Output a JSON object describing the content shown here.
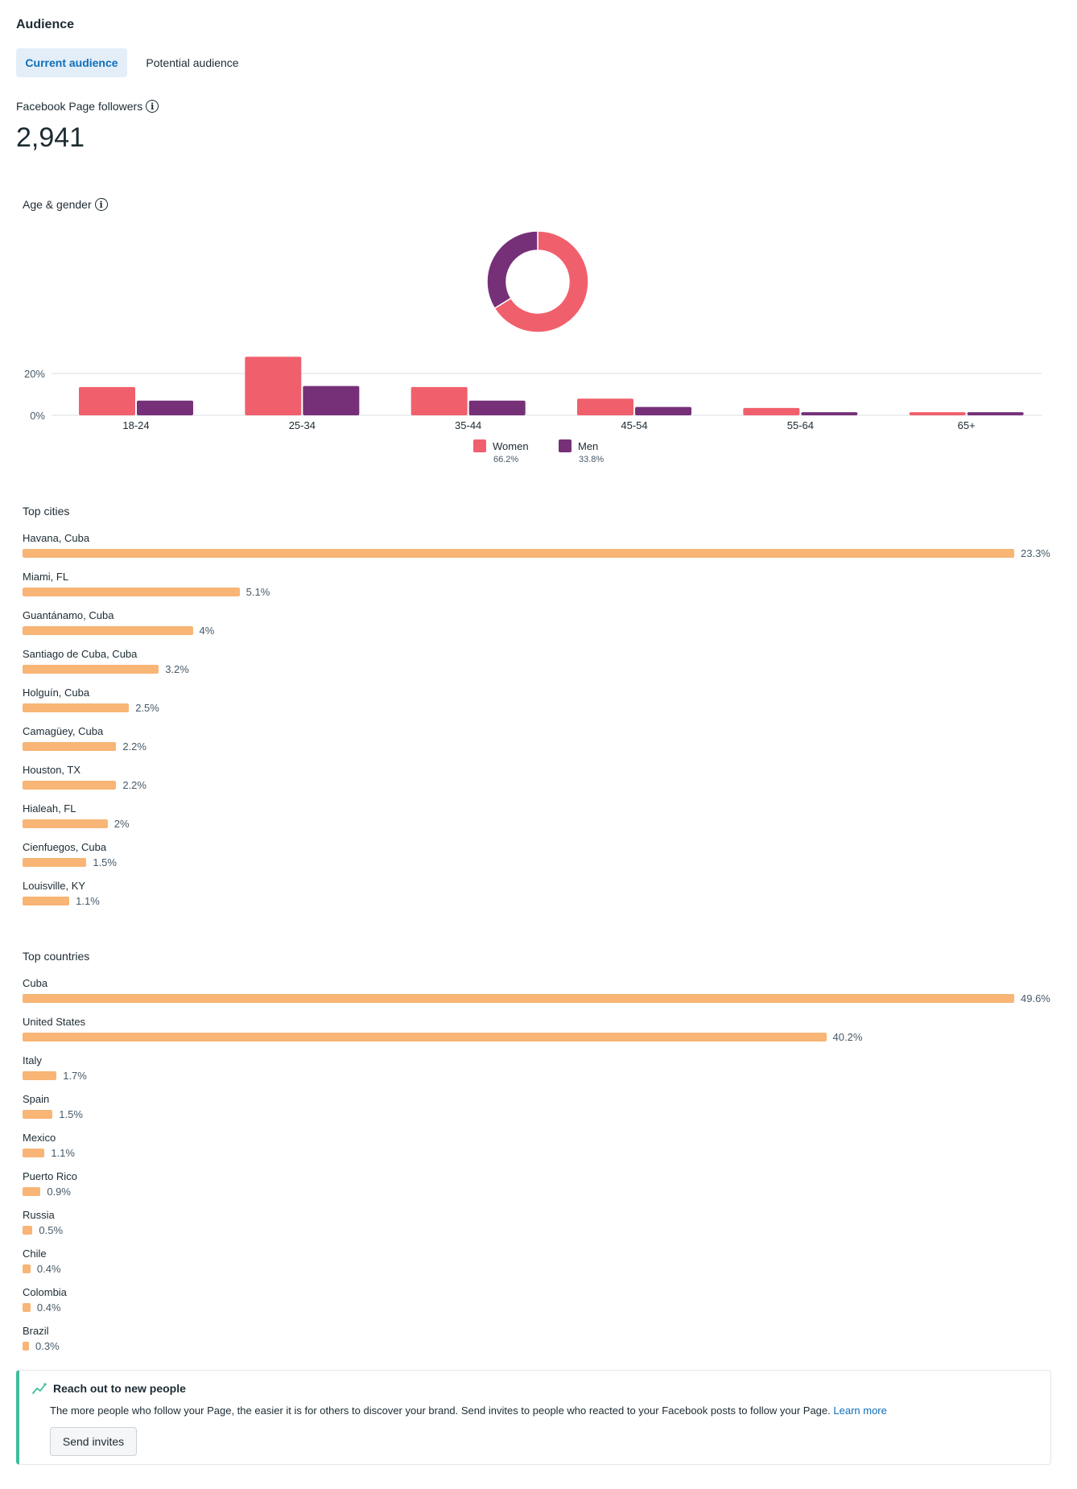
{
  "header": {
    "title": "Audience"
  },
  "tabs": [
    {
      "label": "Current audience",
      "active": true
    },
    {
      "label": "Potential audience",
      "active": false
    }
  ],
  "followers": {
    "label": "Facebook Page followers",
    "value": "2,941"
  },
  "age_gender": {
    "label": "Age & gender",
    "legend": [
      {
        "name": "Women",
        "pct": "66.2%",
        "color": "#f0606c"
      },
      {
        "name": "Men",
        "pct": "33.8%",
        "color": "#763078"
      }
    ]
  },
  "chart_data": [
    {
      "type": "pie",
      "title": "Age & gender",
      "labels": [
        "Women",
        "Men"
      ],
      "values": [
        66.2,
        33.8
      ],
      "colors": [
        "#f0606c",
        "#763078"
      ],
      "donut": true
    },
    {
      "type": "bar",
      "categories": [
        "18-24",
        "25-34",
        "35-44",
        "45-54",
        "55-64",
        "65+"
      ],
      "series": [
        {
          "name": "Women",
          "values": [
            13.5,
            28,
            13.5,
            8,
            3.5,
            1.5
          ],
          "color": "#f0606c"
        },
        {
          "name": "Men",
          "values": [
            7,
            14,
            7,
            4,
            1.5,
            1.5
          ],
          "color": "#763078"
        }
      ],
      "ytick_labels": [
        "0%",
        "20%"
      ],
      "yticks": [
        0,
        20
      ],
      "ylim": [
        0,
        28
      ],
      "grid": true
    },
    {
      "type": "bar",
      "orientation": "horizontal",
      "title": "Top cities",
      "categories": [
        "Havana, Cuba",
        "Miami, FL",
        "Guantánamo, Cuba",
        "Santiago de Cuba, Cuba",
        "Holguín, Cuba",
        "Camagüey, Cuba",
        "Houston, TX",
        "Hialeah, FL",
        "Cienfuegos, Cuba",
        "Louisville, KY"
      ],
      "values": [
        23.3,
        5.1,
        4,
        3.2,
        2.5,
        2.2,
        2.2,
        2,
        1.5,
        1.1
      ],
      "value_labels": [
        "23.3%",
        "5.1%",
        "4%",
        "3.2%",
        "2.5%",
        "2.2%",
        "2.2%",
        "2%",
        "1.5%",
        "1.1%"
      ],
      "color": "#f8b575"
    },
    {
      "type": "bar",
      "orientation": "horizontal",
      "title": "Top countries",
      "categories": [
        "Cuba",
        "United States",
        "Italy",
        "Spain",
        "Mexico",
        "Puerto Rico",
        "Russia",
        "Chile",
        "Colombia",
        "Brazil"
      ],
      "values": [
        49.6,
        40.2,
        1.7,
        1.5,
        1.1,
        0.9,
        0.5,
        0.4,
        0.4,
        0.3
      ],
      "value_labels": [
        "49.6%",
        "40.2%",
        "1.7%",
        "1.5%",
        "1.1%",
        "0.9%",
        "0.5%",
        "0.4%",
        "0.4%",
        "0.3%"
      ],
      "color": "#f8b575"
    }
  ],
  "reach": {
    "title": "Reach out to new people",
    "body": "The more people who follow your Page, the easier it is for others to discover your brand. Send invites to people who reacted to your Facebook posts to follow your Page.",
    "link": "Learn more",
    "button": "Send invites"
  }
}
